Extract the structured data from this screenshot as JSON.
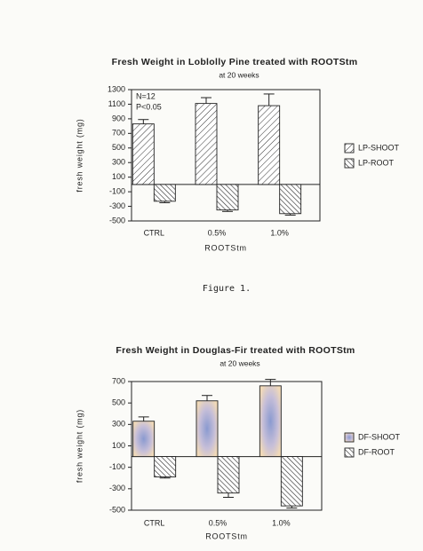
{
  "caption": "Figure 1.",
  "chart_data": [
    {
      "type": "bar",
      "title": "Fresh Weight in Loblolly Pine treated with ROOTStm",
      "subtitle": "at 20 weeks",
      "x_label": "ROOTStm",
      "y_label": "fresh weight (mg)",
      "annotations": [
        "N=12",
        "P<0.05"
      ],
      "categories": [
        "CTRL",
        "0.5%",
        "1.0%"
      ],
      "series": [
        {
          "name": "LP-SHOOT",
          "color": "#333333",
          "pattern": "hatch-up",
          "values": [
            830,
            1110,
            1080
          ],
          "errors": [
            60,
            80,
            160
          ]
        },
        {
          "name": "LP-ROOT",
          "color": "#333333",
          "pattern": "hatch-down",
          "values": [
            -230,
            -350,
            -400
          ],
          "errors": [
            20,
            20,
            20
          ]
        }
      ],
      "ylim": [
        -500,
        1300
      ],
      "yticks": [
        -500,
        -300,
        -100,
        100,
        300,
        500,
        700,
        900,
        1100,
        1300
      ],
      "legend": "right"
    },
    {
      "type": "bar",
      "title": "Fresh Weight in Douglas-Fir treated with ROOTStm",
      "subtitle": "at 20 weeks",
      "x_label": "ROOTStm",
      "y_label": "fresh weight (mg)",
      "categories": [
        "CTRL",
        "0.5%",
        "1.0%"
      ],
      "series": [
        {
          "name": "DF-SHOOT",
          "color": "#7f8fc0",
          "pattern": "speckle",
          "values": [
            330,
            520,
            660
          ],
          "errors": [
            40,
            50,
            60
          ]
        },
        {
          "name": "DF-ROOT",
          "color": "#333333",
          "pattern": "hatch-down",
          "values": [
            -190,
            -340,
            -460
          ],
          "errors": [
            10,
            40,
            20
          ]
        }
      ],
      "ylim": [
        -500,
        700
      ],
      "yticks": [
        -500,
        -300,
        -100,
        100,
        300,
        500,
        700
      ],
      "legend": "right"
    }
  ]
}
